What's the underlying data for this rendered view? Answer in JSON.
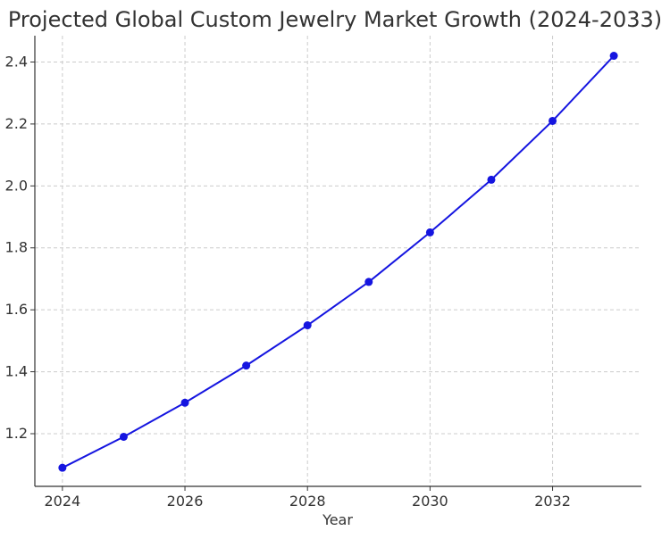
{
  "chart_data": {
    "type": "line",
    "title": "Projected Global Custom Jewelry Market Growth (2024-2033)",
    "xlabel": "Year",
    "ylabel": "",
    "x": [
      2024,
      2025,
      2026,
      2027,
      2028,
      2029,
      2030,
      2031,
      2032,
      2033
    ],
    "series": [
      {
        "values": [
          1.09,
          1.19,
          1.3,
          1.42,
          1.55,
          1.69,
          1.85,
          2.02,
          2.21,
          2.42
        ]
      }
    ],
    "xlim": [
      2023.55,
      2033.45
    ],
    "ylim": [
      1.03,
      2.485
    ],
    "xticks": [
      2024,
      2026,
      2028,
      2030,
      2032
    ],
    "yticks": [
      1.2,
      1.4,
      1.6,
      1.8,
      2.0,
      2.2,
      2.4
    ],
    "ytick_labels": [
      "1.2",
      "1.4",
      "1.6",
      "1.8",
      "2.0",
      "2.2",
      "2.4"
    ],
    "xtick_labels": [
      "2024",
      "2026",
      "2028",
      "2030",
      "2032"
    ],
    "grid": true,
    "line_color": "#1515e0",
    "marker_color": "#1515e0"
  }
}
